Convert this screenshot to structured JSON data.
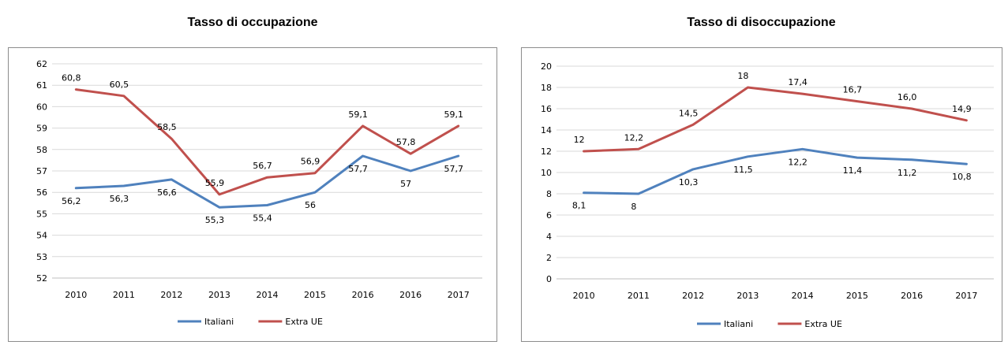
{
  "chart_data": [
    {
      "type": "line",
      "title": "Tasso di occupazione",
      "categories": [
        "2010",
        "2011",
        "2012",
        "2013",
        "2014",
        "2015",
        "2016",
        "2016",
        "2017"
      ],
      "ylim": [
        52,
        62
      ],
      "yticks": [
        52,
        53,
        54,
        55,
        56,
        57,
        58,
        59,
        60,
        61,
        62
      ],
      "grid": true,
      "legend": "bottom",
      "series": [
        {
          "name": "Italiani",
          "color": "#4f81bd",
          "values": [
            56.2,
            56.3,
            56.6,
            55.3,
            55.4,
            56.0,
            57.7,
            57.0,
            57.7
          ],
          "labels": [
            "56,2",
            "56,3",
            "56,6",
            "55,3",
            "55,4",
            "56",
            "57,7",
            "57",
            "57,7"
          ]
        },
        {
          "name": "Extra UE",
          "color": "#c0504d",
          "values": [
            60.8,
            60.5,
            58.5,
            55.9,
            56.7,
            56.9,
            59.1,
            57.8,
            59.1
          ],
          "labels": [
            "60,8",
            "60,5",
            "58,5",
            "55,9",
            "56,7",
            "56,9",
            "59,1",
            "57,8",
            "59,1"
          ]
        }
      ]
    },
    {
      "type": "line",
      "title": "Tasso di disoccupazione",
      "categories": [
        "2010",
        "2011",
        "2012",
        "2013",
        "2014",
        "2015",
        "2016",
        "2017"
      ],
      "ylim": [
        0,
        20
      ],
      "yticks": [
        0,
        2,
        4,
        6,
        8,
        10,
        12,
        14,
        16,
        18,
        20
      ],
      "grid": true,
      "legend": "bottom",
      "series": [
        {
          "name": "Italiani",
          "color": "#4f81bd",
          "values": [
            8.1,
            8.0,
            10.3,
            11.5,
            12.2,
            11.4,
            11.2,
            10.8
          ],
          "labels": [
            "8,1",
            "8",
            "10,3",
            "11,5",
            "12,2",
            "11,4",
            "11,2",
            "10,8"
          ]
        },
        {
          "name": "Extra UE",
          "color": "#c0504d",
          "values": [
            12.0,
            12.2,
            14.5,
            18.0,
            17.4,
            16.7,
            16.0,
            14.9
          ],
          "labels": [
            "12",
            "12,2",
            "14,5",
            "18",
            "17,4",
            "16,7",
            "16,0",
            "14,9"
          ]
        }
      ]
    }
  ]
}
